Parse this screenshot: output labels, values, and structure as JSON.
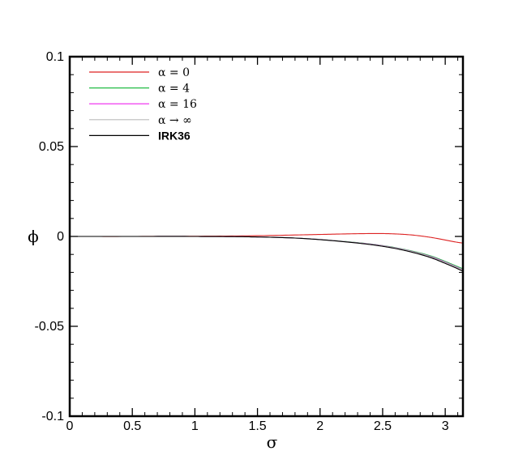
{
  "chart_data": {
    "type": "line",
    "xlabel": "σ",
    "ylabel": "ϕ",
    "xlim": [
      0,
      3.14159
    ],
    "ylim": [
      -0.1,
      0.1
    ],
    "grid": false,
    "legend_position": "top-left",
    "x_ticks": [
      {
        "value": 0,
        "label": "0"
      },
      {
        "value": 0.5,
        "label": "0.5"
      },
      {
        "value": 1,
        "label": "1"
      },
      {
        "value": 1.5,
        "label": "1.5"
      },
      {
        "value": 2,
        "label": "2"
      },
      {
        "value": 2.5,
        "label": "2.5"
      },
      {
        "value": 3,
        "label": "3"
      }
    ],
    "y_ticks": [
      {
        "value": 0.1,
        "label": "0.1"
      },
      {
        "value": 0.05,
        "label": "0.05"
      },
      {
        "value": 0,
        "label": "0"
      },
      {
        "value": -0.05,
        "label": "-0.05"
      },
      {
        "value": -0.1,
        "label": "-0.1"
      }
    ],
    "series": [
      {
        "name": "α = 0",
        "color": "#dd2222",
        "x": [
          0,
          0.5,
          1.0,
          1.5,
          1.8,
          2.0,
          2.2,
          2.4,
          2.5,
          2.6,
          2.7,
          2.8,
          2.9,
          3.0,
          3.1,
          3.1416
        ],
        "y": [
          0,
          0,
          0.0001,
          0.0004,
          0.0008,
          0.0011,
          0.0014,
          0.0016,
          0.0016,
          0.0014,
          0.001,
          0.0003,
          -0.0007,
          -0.002,
          -0.0033,
          -0.0037
        ]
      },
      {
        "name": "α = 4",
        "color": "#22bb44",
        "x": [
          0,
          0.5,
          1.0,
          1.3,
          1.5,
          1.8,
          2.0,
          2.2,
          2.4,
          2.5,
          2.6,
          2.7,
          2.8,
          2.9,
          3.0,
          3.1,
          3.1416
        ],
        "y": [
          0,
          0,
          0,
          -0.0001,
          -0.0003,
          -0.0009,
          -0.0017,
          -0.0028,
          -0.0042,
          -0.0051,
          -0.0062,
          -0.0076,
          -0.0092,
          -0.0112,
          -0.0139,
          -0.0168,
          -0.018
        ]
      },
      {
        "name": "α = 16",
        "color": "#ee22ee",
        "x": [
          0,
          0.5,
          1.0,
          1.3,
          1.5,
          1.8,
          2.0,
          2.2,
          2.4,
          2.5,
          2.6,
          2.7,
          2.8,
          2.9,
          3.0,
          3.1,
          3.1416
        ],
        "y": [
          0,
          0,
          0,
          -0.0001,
          -0.0003,
          -0.0009,
          -0.0017,
          -0.0029,
          -0.0043,
          -0.0052,
          -0.0064,
          -0.0078,
          -0.0095,
          -0.0116,
          -0.0143,
          -0.0173,
          -0.0186
        ]
      },
      {
        "name": "α → ∞",
        "color": "#bbbbbb",
        "x": [
          0,
          0.5,
          1.0,
          1.3,
          1.5,
          1.8,
          2.0,
          2.2,
          2.4,
          2.5,
          2.6,
          2.7,
          2.8,
          2.9,
          3.0,
          3.1,
          3.1416
        ],
        "y": [
          0,
          0,
          0,
          -0.0001,
          -0.0003,
          -0.0009,
          -0.0017,
          -0.0029,
          -0.0044,
          -0.0053,
          -0.0065,
          -0.0079,
          -0.0096,
          -0.0118,
          -0.0145,
          -0.0175,
          -0.0188
        ]
      },
      {
        "name": "IRK36",
        "color": "#000000",
        "bold": true,
        "x": [
          0,
          0.5,
          1.0,
          1.3,
          1.5,
          1.8,
          2.0,
          2.2,
          2.4,
          2.5,
          2.6,
          2.7,
          2.8,
          2.9,
          3.0,
          3.1,
          3.1416
        ],
        "y": [
          0,
          0,
          0,
          -0.0001,
          -0.0003,
          -0.0009,
          -0.0018,
          -0.003,
          -0.0045,
          -0.0055,
          -0.0067,
          -0.0082,
          -0.01,
          -0.0122,
          -0.015,
          -0.018,
          -0.0194
        ]
      }
    ]
  }
}
